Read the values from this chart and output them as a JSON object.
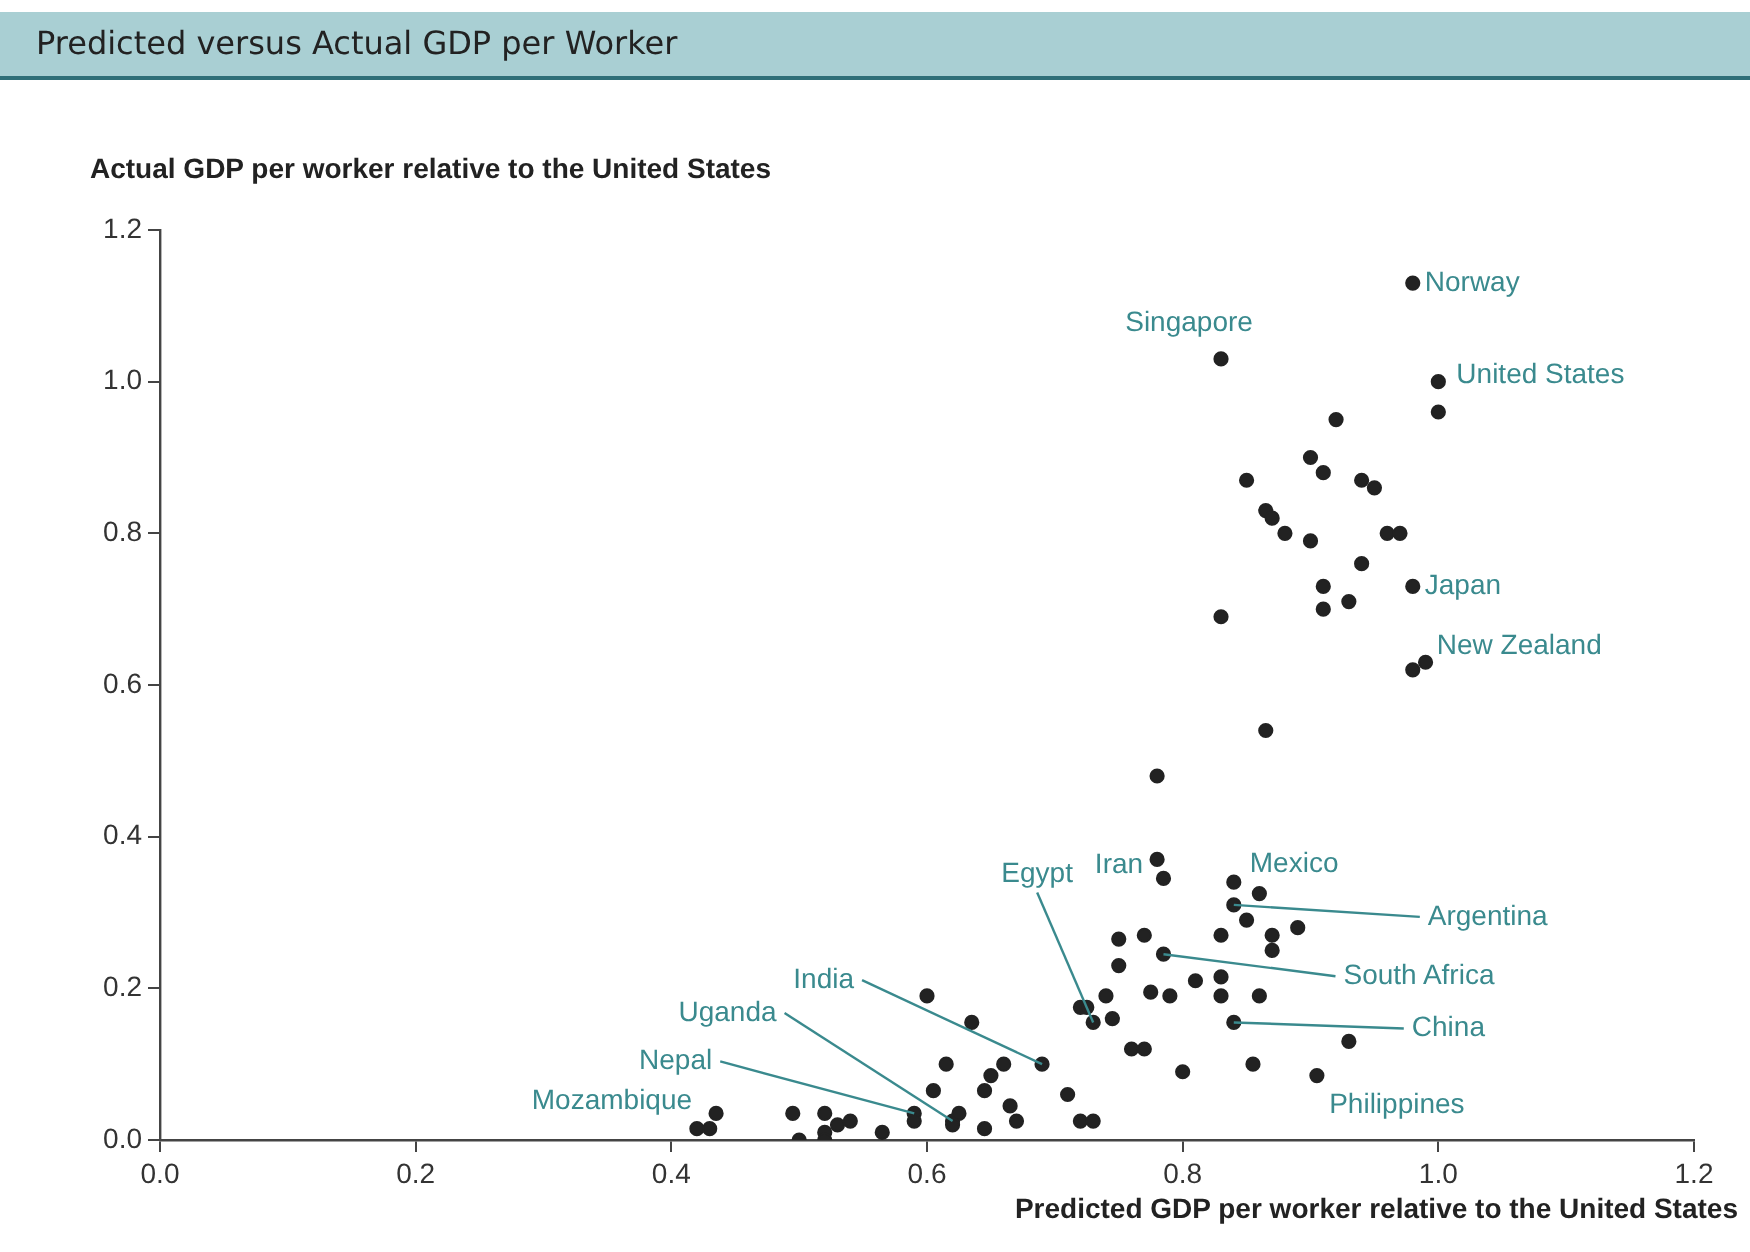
{
  "chart_data": {
    "type": "scatter",
    "title": "Predicted versus Actual GDP per Worker",
    "xlabel": "Predicted GDP per worker relative to the United States",
    "ylabel": "Actual GDP per worker relative to the United States",
    "series": [
      {
        "color": "#222222",
        "x": [
          0.98,
          0.83,
          1.0,
          1.0,
          0.92,
          0.9,
          0.85,
          0.91,
          0.94,
          0.95,
          0.865,
          0.87,
          0.88,
          0.9,
          0.96,
          0.97,
          0.94,
          0.91,
          0.91,
          0.93,
          0.98,
          0.83,
          0.98,
          0.99,
          0.865,
          0.78,
          0.78,
          0.785,
          0.84,
          0.86,
          0.84,
          0.85,
          0.83,
          0.87,
          0.89,
          0.87,
          0.785,
          0.81,
          0.83,
          0.79,
          0.83,
          0.86,
          0.84,
          0.93,
          0.8,
          0.855,
          0.905,
          0.75,
          0.77,
          0.75,
          0.775,
          0.72,
          0.725,
          0.74,
          0.73,
          0.745,
          0.76,
          0.77,
          0.6,
          0.635,
          0.69,
          0.615,
          0.605,
          0.645,
          0.65,
          0.66,
          0.665,
          0.67,
          0.645,
          0.71,
          0.72,
          0.73,
          0.62,
          0.625,
          0.62,
          0.59,
          0.59,
          0.565,
          0.495,
          0.52,
          0.5,
          0.52,
          0.52,
          0.53,
          0.54,
          0.435,
          0.42,
          0.43
        ],
        "values": [
          1.13,
          1.03,
          1.0,
          0.96,
          0.95,
          0.9,
          0.87,
          0.88,
          0.87,
          0.86,
          0.83,
          0.82,
          0.8,
          0.79,
          0.8,
          0.8,
          0.76,
          0.73,
          0.7,
          0.71,
          0.73,
          0.69,
          0.62,
          0.63,
          0.54,
          0.48,
          0.37,
          0.345,
          0.34,
          0.325,
          0.31,
          0.29,
          0.27,
          0.27,
          0.28,
          0.25,
          0.245,
          0.21,
          0.215,
          0.19,
          0.19,
          0.19,
          0.155,
          0.13,
          0.09,
          0.1,
          0.085,
          0.265,
          0.27,
          0.23,
          0.195,
          0.175,
          0.175,
          0.19,
          0.155,
          0.16,
          0.12,
          0.12,
          0.19,
          0.155,
          0.1,
          0.1,
          0.065,
          0.065,
          0.085,
          0.1,
          0.045,
          0.025,
          0.015,
          0.06,
          0.025,
          0.025,
          0.025,
          0.035,
          0.02,
          0.035,
          0.025,
          0.01,
          0.035,
          0.035,
          0.0,
          0.01,
          0.0,
          0.02,
          0.025,
          0.035,
          0.015,
          0.015
        ]
      }
    ],
    "xlim": [
      0,
      1.2
    ],
    "xticks": [
      {
        "value": 0,
        "label": "0.0"
      },
      0.2,
      0.4,
      0.6,
      0.8,
      {
        "value": 1,
        "label": "1.0"
      },
      1.2
    ],
    "ylim": [
      0,
      1.2
    ],
    "yticks": [
      {
        "value": 0,
        "label": "0.0"
      },
      0.2,
      0.4,
      0.6,
      0.8,
      {
        "value": 1,
        "label": "1.0"
      },
      1.2
    ],
    "grid": false,
    "legend": false,
    "marker": "circle",
    "annotations": [
      {
        "text": "Norway",
        "x": 0.98,
        "y": 1.13
      },
      {
        "text": "Singapore",
        "x": 0.83,
        "y": 1.03
      },
      {
        "text": "United States",
        "x": 1.0,
        "y": 1.0
      },
      {
        "text": "Japan",
        "x": 0.98,
        "y": 0.73
      },
      {
        "text": "New Zealand",
        "x": 0.98,
        "y": 0.62
      },
      {
        "text": "Iran",
        "x": 0.78,
        "y": 0.37
      },
      {
        "text": "Egypt",
        "x": 0.73,
        "y": 0.155
      },
      {
        "text": "Mexico",
        "x": 0.84,
        "y": 0.34
      },
      {
        "text": "Argentina",
        "x": 0.84,
        "y": 0.31
      },
      {
        "text": "South Africa",
        "x": 0.785,
        "y": 0.245
      },
      {
        "text": "China",
        "x": 0.84,
        "y": 0.155
      },
      {
        "text": "Philippines",
        "x": 0.905,
        "y": 0.085
      },
      {
        "text": "India",
        "x": 0.69,
        "y": 0.1
      },
      {
        "text": "Uganda",
        "x": 0.62,
        "y": 0.025
      },
      {
        "text": "Nepal",
        "x": 0.59,
        "y": 0.035
      },
      {
        "text": "Mozambique",
        "x": 0.435,
        "y": 0.035
      }
    ]
  }
}
